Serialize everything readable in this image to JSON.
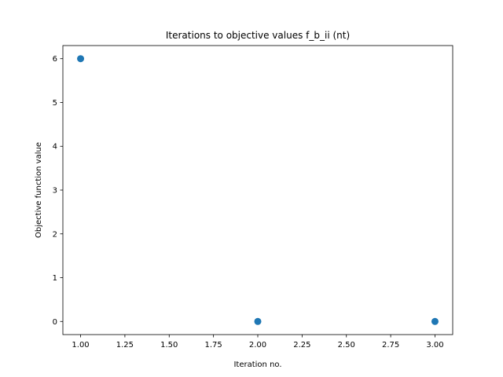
{
  "chart_data": {
    "type": "scatter",
    "title": "Iterations to objective values f_b_ii (nt)",
    "xlabel": "Iteration no.",
    "ylabel": "Objective function value",
    "x": [
      1,
      2,
      3
    ],
    "y": [
      6,
      0,
      0
    ],
    "xlim": [
      0.9,
      3.1
    ],
    "ylim": [
      -0.3,
      6.3
    ],
    "xticks": [
      1.0,
      1.25,
      1.5,
      1.75,
      2.0,
      2.25,
      2.5,
      2.75,
      3.0
    ],
    "xtick_labels": [
      "1.00",
      "1.25",
      "1.50",
      "1.75",
      "2.00",
      "2.25",
      "2.50",
      "2.75",
      "3.00"
    ],
    "yticks": [
      0,
      1,
      2,
      3,
      4,
      5,
      6
    ],
    "ytick_labels": [
      "0",
      "1",
      "2",
      "3",
      "4",
      "5",
      "6"
    ],
    "grid": false,
    "marker_color": "#1f77b4"
  }
}
